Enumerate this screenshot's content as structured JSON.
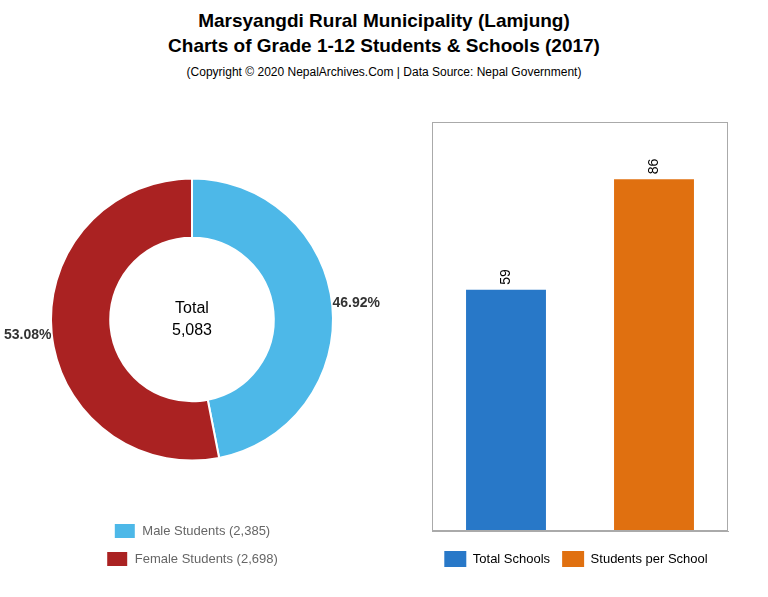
{
  "chart_data": [
    {
      "type": "doughnut",
      "title": [
        "Marsyangdi Rural Municipality (Lamjung)",
        "Charts of Grade 1-12 Students & Schools (2017)"
      ],
      "subtitle": "(Copyright © 2020 NepalArchives.Com | Data Source: Nepal Government)",
      "categories": [
        "Male Students (2,385)",
        "Female Students (2,698)"
      ],
      "values": [
        46.92,
        53.08
      ],
      "value_labels": [
        "46.92%",
        "53.08%"
      ],
      "colors": [
        "#4db8e8",
        "#aa2222"
      ],
      "data_labels": true,
      "annotations": [
        "Total",
        "5,083"
      ],
      "legend": "bottom"
    },
    {
      "type": "bar",
      "categories": [
        "Total Schools",
        "Students per School"
      ],
      "values": [
        59,
        86
      ],
      "colors": [
        "#2878c8",
        "#e07010"
      ],
      "ylim": [
        0,
        100
      ],
      "data_labels": true,
      "tick_labels": false,
      "grid": false,
      "legend": "bottom"
    }
  ]
}
